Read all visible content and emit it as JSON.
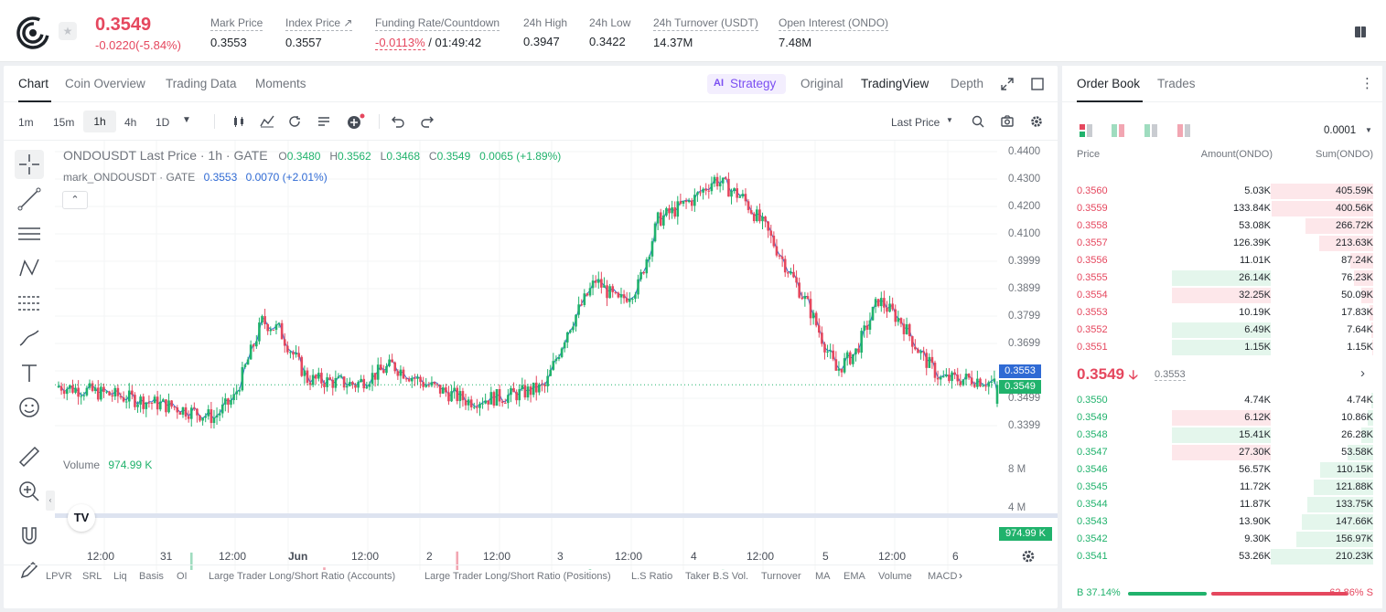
{
  "header": {
    "last_price": "0.3549",
    "change": "-0.0220(-5.84%)",
    "stats": [
      {
        "label": "Mark Price",
        "value": "0.3553"
      },
      {
        "label": "Index Price ↗",
        "value": "0.3557"
      },
      {
        "label": "Funding Rate/Countdown",
        "value_red": "-0.0113%",
        "value": " / 01:49:42"
      },
      {
        "label": "24h High",
        "value": "0.3947"
      },
      {
        "label": "24h Low",
        "value": "0.3422"
      },
      {
        "label": "24h Turnover (USDT)",
        "value": "14.37M"
      },
      {
        "label": "Open Interest (ONDO)",
        "value": "7.48M"
      }
    ]
  },
  "chart_tabs": {
    "tabs": [
      "Chart",
      "Coin Overview",
      "Trading Data",
      "Moments"
    ],
    "active": "Chart",
    "strategy": "Strategy",
    "strategy_icon": "AI",
    "views": [
      "Original",
      "TradingView",
      "Depth"
    ],
    "active_view": "TradingView"
  },
  "toolbar": {
    "intervals": [
      "1m",
      "15m",
      "1h",
      "4h",
      "1D"
    ],
    "active_interval": "1h",
    "price_type": "Last Price"
  },
  "legend": {
    "symbol": "ONDOUSDT Last Price · 1h · GATE",
    "o_lbl": "O",
    "o": "0.3480",
    "h_lbl": "H",
    "h": "0.3562",
    "l_lbl": "L",
    "l": "0.3468",
    "c_lbl": "C",
    "c": "0.3549",
    "chg": "0.0065 (+1.89%)",
    "mark_symbol": "mark_ONDOUSDT · GATE",
    "mark_val": "0.3553",
    "mark_chg": "0.0070 (+2.01%)",
    "volume_label": "Volume",
    "volume_val": "974.99 K"
  },
  "price_axis": [
    "0.4400",
    "0.4300",
    "0.4200",
    "0.4100",
    "0.3999",
    "0.3899",
    "0.3799",
    "0.3699",
    "0.3599",
    "0.3499",
    "0.3399"
  ],
  "price_tags": {
    "mark": "0.3553",
    "last": "0.3549",
    "volume": "974.99 K"
  },
  "volume_axis": [
    "8 M",
    "4 M"
  ],
  "time_axis": [
    "12:00",
    "31",
    "12:00",
    "Jun",
    "12:00",
    "2",
    "12:00",
    "3",
    "12:00",
    "4",
    "12:00",
    "5",
    "12:00",
    "6"
  ],
  "indicators": [
    "LPVR",
    "SRL",
    "Liq",
    "Basis",
    "OI",
    "Large Trader Long/Short Ratio (Accounts)",
    "Large Trader Long/Short Ratio (Positions)",
    "L.S Ratio",
    "Taker B.S Vol.",
    "Turnover",
    "MA",
    "EMA",
    "Volume",
    "MACD"
  ],
  "orderbook": {
    "tabs": [
      "Order Book",
      "Trades"
    ],
    "active": "Order Book",
    "precision": "0.0001",
    "col_price": "Price",
    "col_amount": "Amount(ONDO)",
    "col_sum": "Sum(ONDO)",
    "asks": [
      {
        "price": "0.3560",
        "amount": "5.03K",
        "sum": "405.59K",
        "depth": 1.0,
        "amt_hl": 0
      },
      {
        "price": "0.3559",
        "amount": "133.84K",
        "sum": "400.56K",
        "depth": 0.99,
        "amt_hl": 0
      },
      {
        "price": "0.3558",
        "amount": "53.08K",
        "sum": "266.72K",
        "depth": 0.66,
        "amt_hl": 0
      },
      {
        "price": "0.3557",
        "amount": "126.39K",
        "sum": "213.63K",
        "depth": 0.53,
        "amt_hl": 0
      },
      {
        "price": "0.3556",
        "amount": "11.01K",
        "sum": "87.24K",
        "depth": 0.22,
        "amt_hl": 0
      },
      {
        "price": "0.3555",
        "amount": "26.14K",
        "sum": "76.23K",
        "depth": 0.19,
        "amt_hl": 1
      },
      {
        "price": "0.3554",
        "amount": "32.25K",
        "sum": "50.09K",
        "depth": 0.12,
        "amt_hl": -1
      },
      {
        "price": "0.3553",
        "amount": "10.19K",
        "sum": "17.83K",
        "depth": 0.04,
        "amt_hl": 0
      },
      {
        "price": "0.3552",
        "amount": "6.49K",
        "sum": "7.64K",
        "depth": 0.02,
        "amt_hl": 1
      },
      {
        "price": "0.3551",
        "amount": "1.15K",
        "sum": "1.15K",
        "depth": 0.01,
        "amt_hl": 1
      }
    ],
    "mid_price": "0.3549",
    "mid_mark": "0.3553",
    "bids": [
      {
        "price": "0.3550",
        "amount": "4.74K",
        "sum": "4.74K",
        "depth": 0.02,
        "amt_hl": 0
      },
      {
        "price": "0.3549",
        "amount": "6.12K",
        "sum": "10.86K",
        "depth": 0.05,
        "amt_hl": -1
      },
      {
        "price": "0.3548",
        "amount": "15.41K",
        "sum": "26.28K",
        "depth": 0.12,
        "amt_hl": 1
      },
      {
        "price": "0.3547",
        "amount": "27.30K",
        "sum": "53.58K",
        "depth": 0.25,
        "amt_hl": -1
      },
      {
        "price": "0.3546",
        "amount": "56.57K",
        "sum": "110.15K",
        "depth": 0.52,
        "amt_hl": 0
      },
      {
        "price": "0.3545",
        "amount": "11.72K",
        "sum": "121.88K",
        "depth": 0.58,
        "amt_hl": 0
      },
      {
        "price": "0.3544",
        "amount": "11.87K",
        "sum": "133.75K",
        "depth": 0.64,
        "amt_hl": 0
      },
      {
        "price": "0.3543",
        "amount": "13.90K",
        "sum": "147.66K",
        "depth": 0.7,
        "amt_hl": 0
      },
      {
        "price": "0.3542",
        "amount": "9.30K",
        "sum": "156.97K",
        "depth": 0.75,
        "amt_hl": 0
      },
      {
        "price": "0.3541",
        "amount": "53.26K",
        "sum": "210.23K",
        "depth": 1.0,
        "amt_hl": 0
      }
    ],
    "buy_label": "B",
    "buy_pct": "37.14%",
    "buy_frac": 0.3714,
    "sell_pct": "62.86%",
    "sell_label": "S"
  },
  "colors": {
    "up": "#20b26c",
    "down": "#e5475e",
    "accent": "#7b4ff2"
  }
}
